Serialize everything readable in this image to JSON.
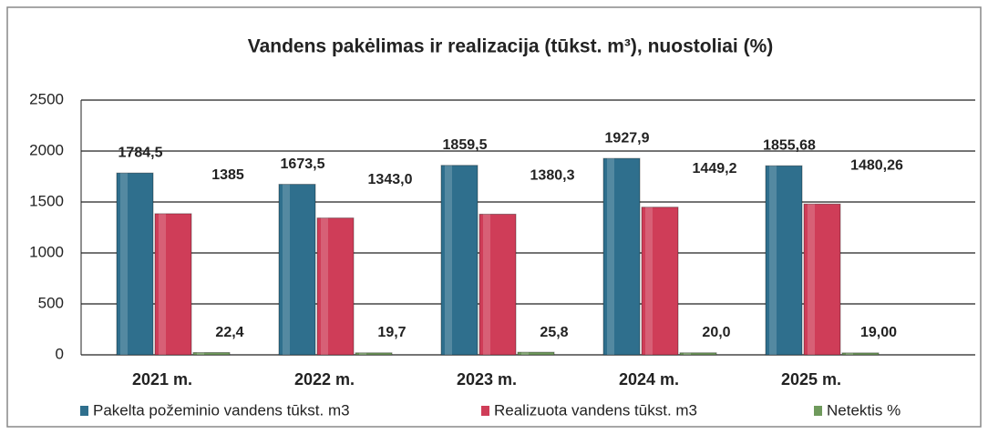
{
  "chart_data": {
    "type": "bar",
    "title": "Vandens pakėlimas ir realizacija (tūkst. m³), nuostoliai (%)",
    "categories": [
      "2021 m.",
      "2022 m.",
      "2023 m.",
      "2024 m.",
      "2025 m."
    ],
    "series": [
      {
        "name": "Pakelta požeminio vandens tūkst. m3",
        "color": "#2f6f8d",
        "values": [
          1784.5,
          1673.5,
          1859.5,
          1927.9,
          1855.68
        ],
        "value_labels": [
          "1784,5",
          "1673,5",
          "1859,5",
          "1927,9",
          "1855,68"
        ]
      },
      {
        "name": "Realizuota vandens  tūkst. m3",
        "color": "#cf3d58",
        "values": [
          1385,
          1343.0,
          1380.3,
          1449.2,
          1480.26
        ],
        "value_labels": [
          "1385",
          "1343,0",
          "1380,3",
          "1449,2",
          "1480,26"
        ]
      },
      {
        "name": "Netektis %",
        "color": "#6f9a5c",
        "values": [
          22.4,
          19.7,
          25.8,
          20.0,
          19.0
        ],
        "value_labels": [
          "22,4",
          "19,7",
          "25,8",
          "20,0",
          "19,00"
        ]
      }
    ],
    "ylim": [
      0,
      2500
    ],
    "yticks": [
      0,
      500,
      1000,
      1500,
      2000,
      2500
    ],
    "grid": true
  }
}
